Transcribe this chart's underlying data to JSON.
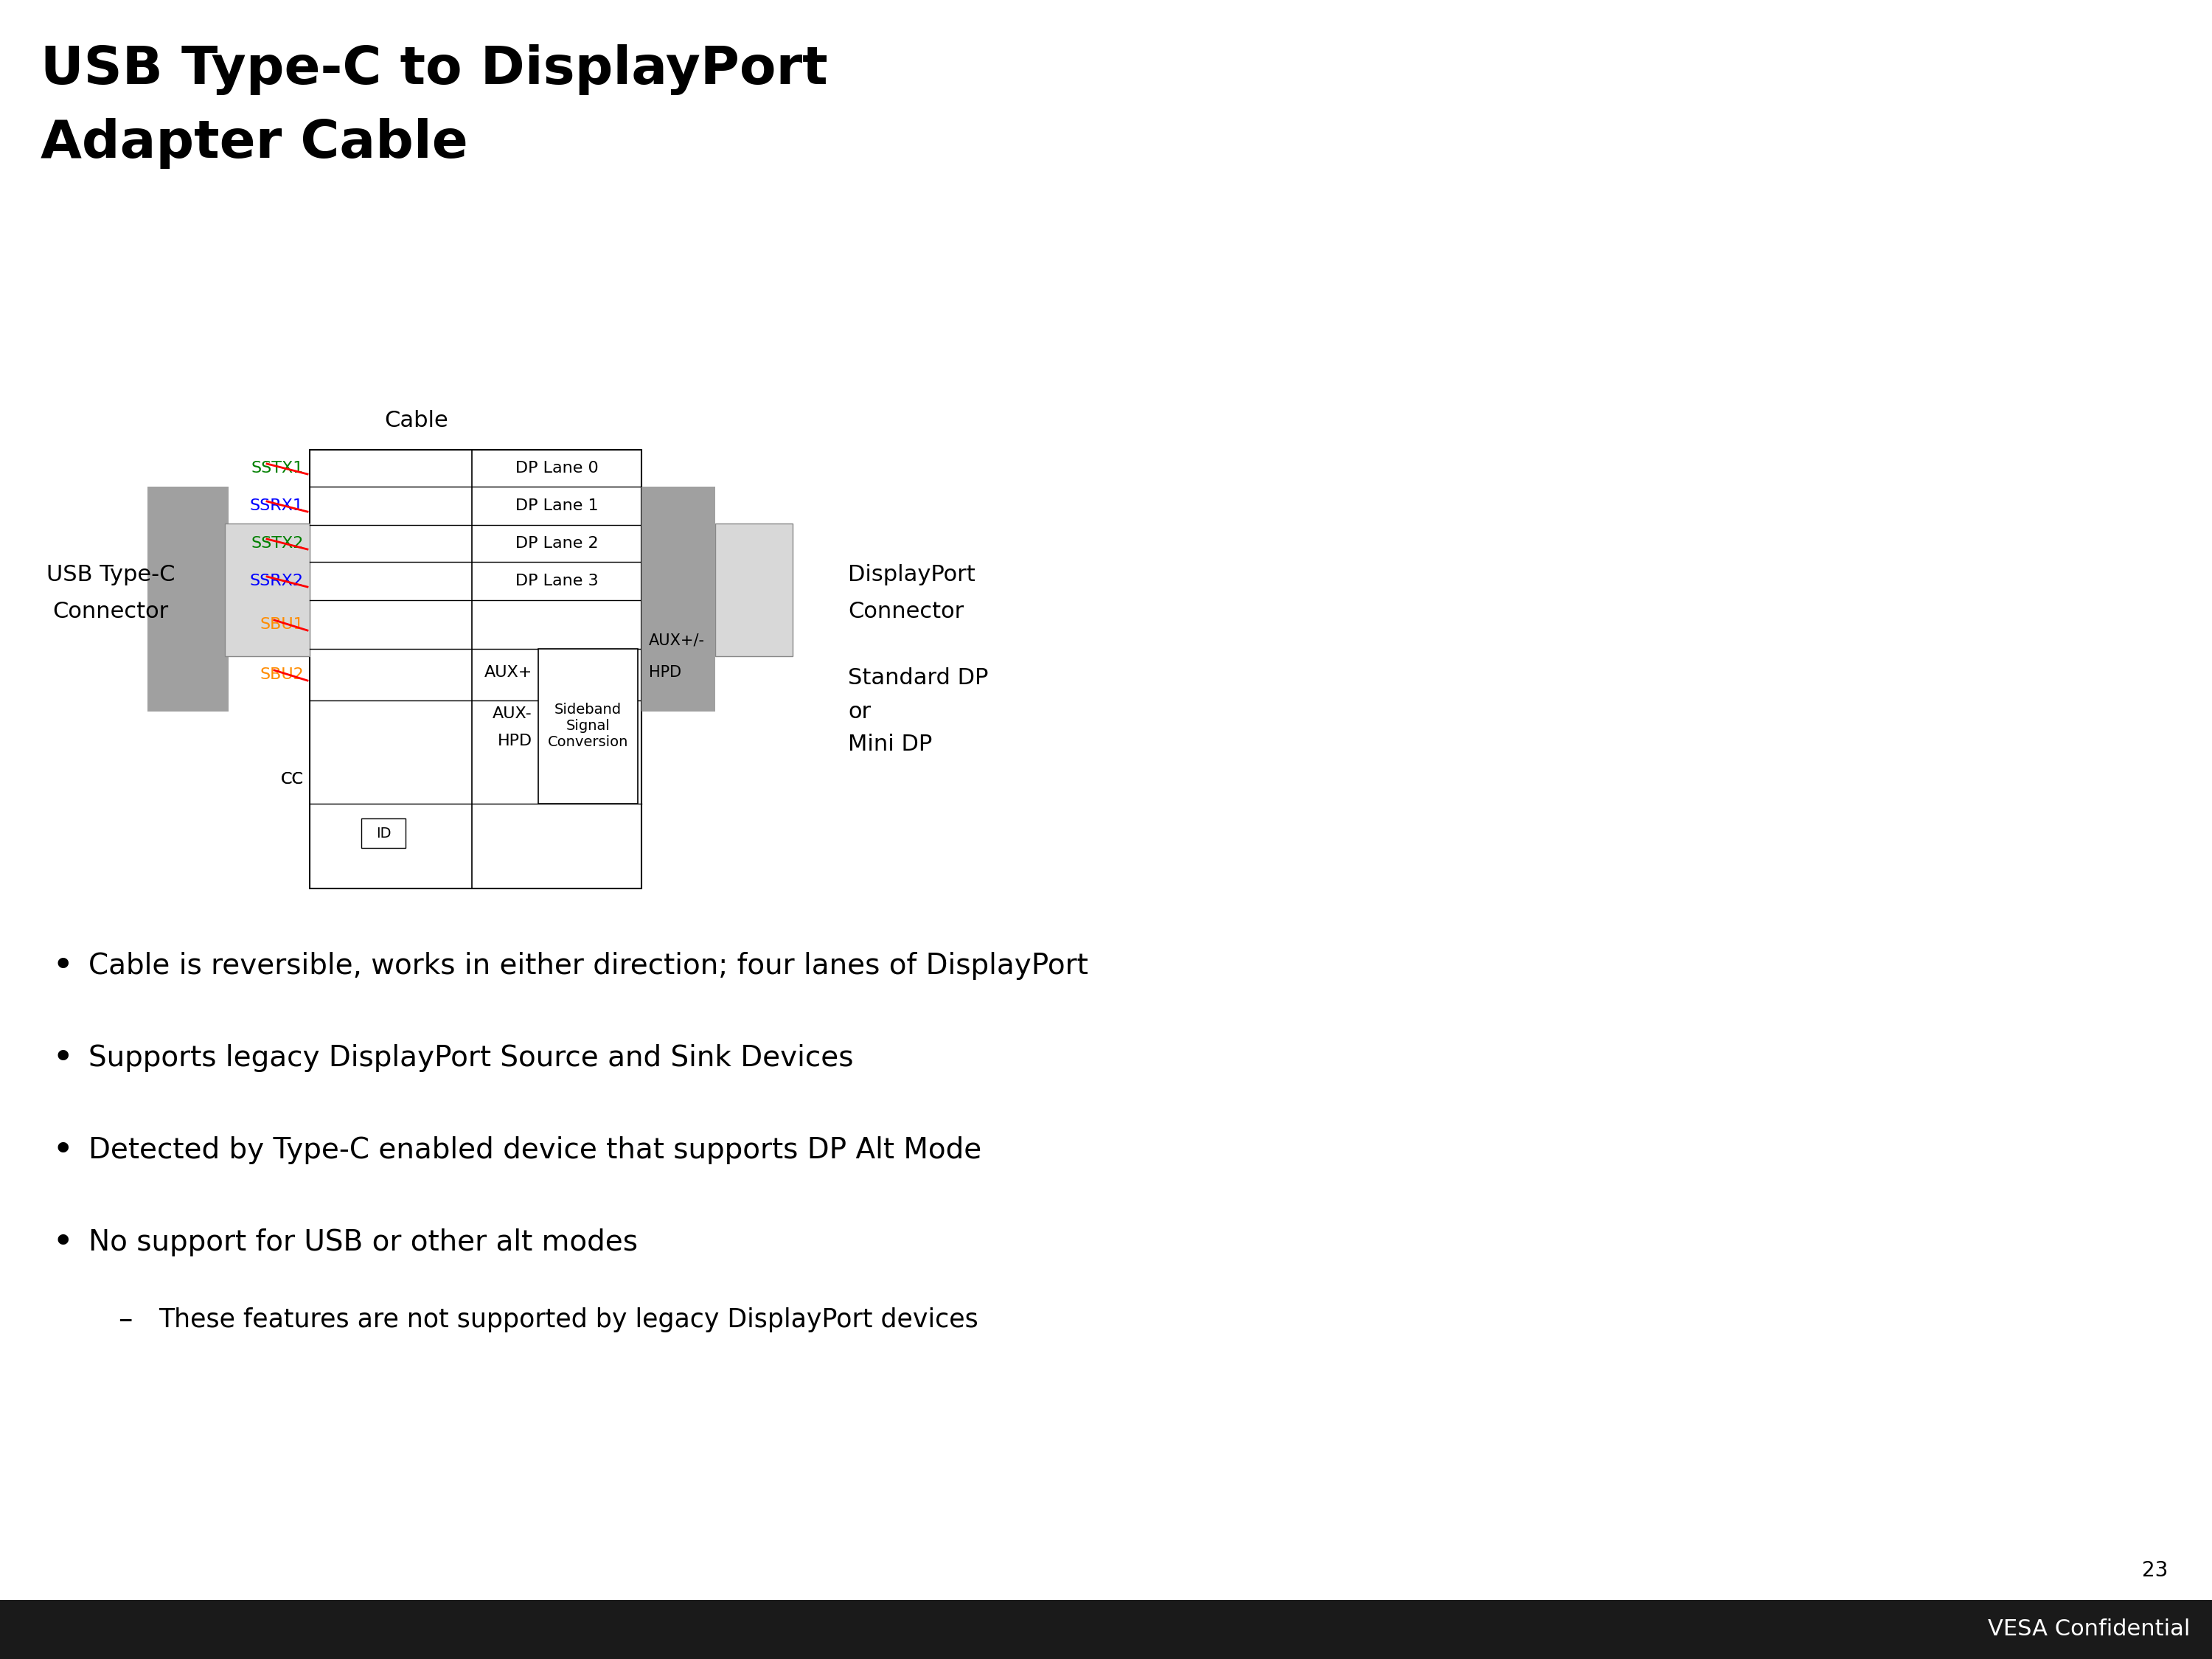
{
  "title_line1": "USB Type-C to DisplayPort",
  "title_line2": "Adapter Cable",
  "title_fontsize": 52,
  "cable_label": "Cable",
  "left_connector_label1": "USB Type-C",
  "left_connector_label2": "Connector",
  "right_connector_label1": "DisplayPort",
  "right_connector_label2": "Connector",
  "right_standard_label1": "Standard DP",
  "right_standard_label2": "or",
  "right_standard_label3": "Mini DP",
  "left_signals": [
    "SSTX1",
    "SSRX1",
    "SSTX2",
    "SSRX2",
    "SBU1",
    "SBU2",
    "CC"
  ],
  "left_signal_colors": [
    "#008000",
    "#0000FF",
    "#008000",
    "#0000FF",
    "#FF8C00",
    "#FF8C00",
    "#000000"
  ],
  "left_signal_strikethrough": [
    true,
    true,
    true,
    true,
    true,
    true,
    false
  ],
  "dp_labels": [
    "DP Lane 0",
    "DP Lane 1",
    "DP Lane 2",
    "DP Lane 3"
  ],
  "aux_plus_label": "AUX+",
  "aux_hpd_label": "AUX-\nHPD",
  "aux_pm_label": "AUX+/-",
  "hpd_label": "HPD",
  "cc_label": "CC",
  "sideband_label": "Sideband\nSignal\nConversion",
  "id_label": "ID",
  "bullet_points": [
    "Cable is reversible, works in either direction; four lanes of DisplayPort",
    "Supports legacy DisplayPort Source and Sink Devices",
    "Detected by Type-C enabled device that supports DP Alt Mode",
    "No support for USB or other alt modes"
  ],
  "sub_bullet": "These features are not supported by legacy DisplayPort devices",
  "page_number": "23",
  "footer_text": "VESA Confidential",
  "bg_color": "#FFFFFF",
  "footer_bg": "#1a1a1a",
  "footer_text_color": "#FFFFFF",
  "light_gray": "#d8d8d8",
  "dark_gray": "#a0a0a0"
}
